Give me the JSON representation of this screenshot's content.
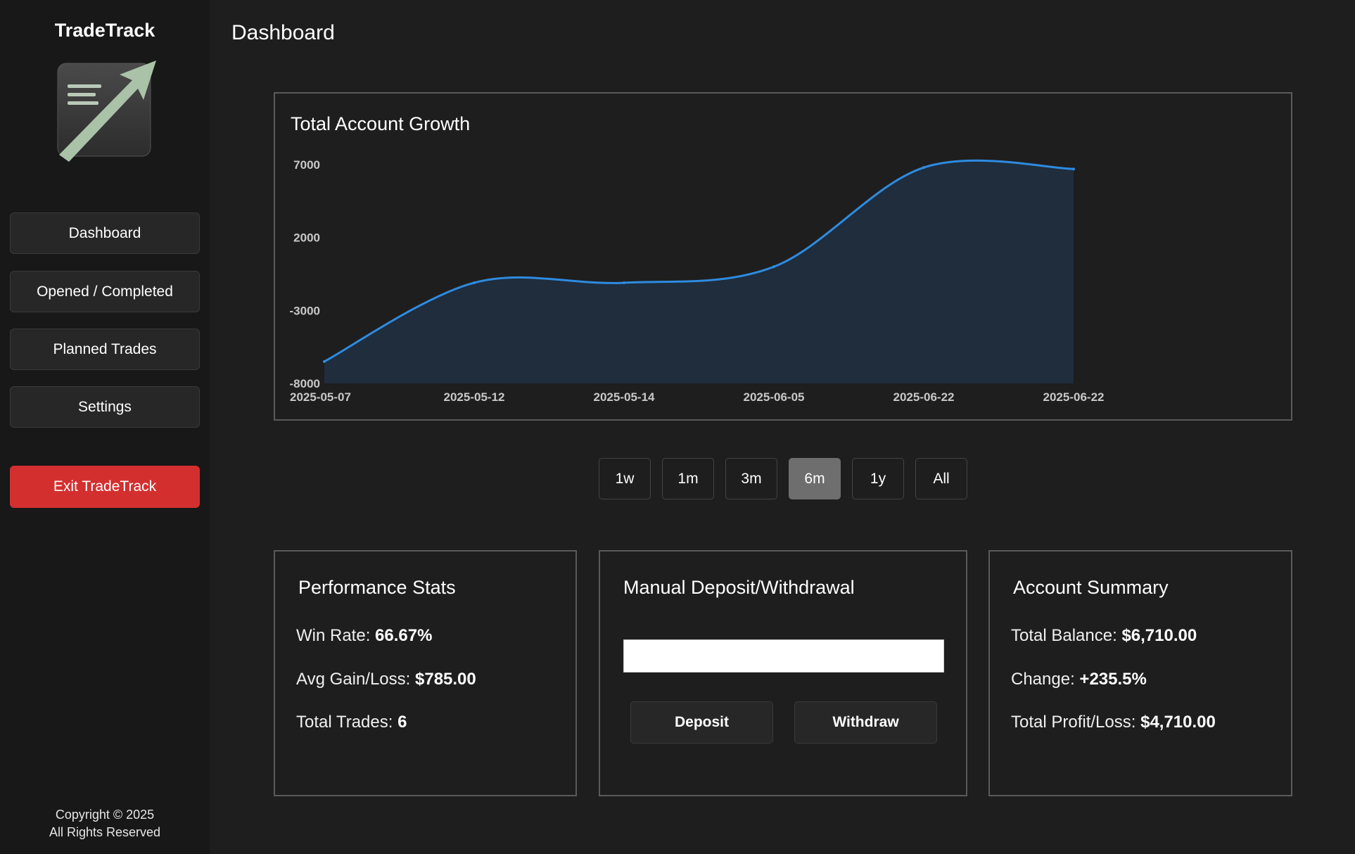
{
  "sidebar": {
    "app_title": "TradeTrack",
    "logo_icon": "chart-arrow-logo-icon",
    "nav": {
      "dashboard": "Dashboard",
      "opened_completed": "Opened / Completed",
      "planned_trades": "Planned Trades",
      "settings": "Settings"
    },
    "exit_label": "Exit TradeTrack",
    "copyright_line1": "Copyright © 2025",
    "copyright_line2": "All Rights Reserved"
  },
  "header": {
    "title": "Dashboard"
  },
  "chart_data": {
    "type": "area",
    "title": "Total Account Growth",
    "x": [
      "2025-05-07",
      "2025-05-12",
      "2025-05-14",
      "2025-06-05",
      "2025-06-22",
      "2025-06-22"
    ],
    "series": [
      {
        "values": [
          -6500,
          -1100,
          -1100,
          0,
          6800,
          6700
        ]
      }
    ],
    "y_ticks": [
      7000,
      2000,
      -3000,
      -8000
    ],
    "ylim": [
      -8000,
      7000
    ],
    "grid": false,
    "line_color": "#2e8be0",
    "fill_color": "#1f2d3d"
  },
  "range_selector": {
    "options": [
      "1w",
      "1m",
      "3m",
      "6m",
      "1y",
      "All"
    ],
    "selected": "6m"
  },
  "performance": {
    "title": "Performance Stats",
    "win_rate_label": "Win Rate:",
    "win_rate_value": "66.67%",
    "avg_label": "Avg Gain/Loss:",
    "avg_value": "$785.00",
    "trades_label": "Total Trades:",
    "trades_value": "6"
  },
  "manual": {
    "title": "Manual Deposit/Withdrawal",
    "amount_value": "",
    "deposit_label": "Deposit",
    "withdraw_label": "Withdraw"
  },
  "summary": {
    "title": "Account Summary",
    "balance_label": "Total Balance:",
    "balance_value": "$6,710.00",
    "change_label": "Change:",
    "change_value": "+235.5%",
    "pl_label": "Total Profit/Loss:",
    "pl_value": "$4,710.00"
  },
  "colors": {
    "background": "#1e1e1e",
    "sidebar": "#181818",
    "exit_button": "#d32f2f",
    "active_range": "#6e6e6e"
  }
}
